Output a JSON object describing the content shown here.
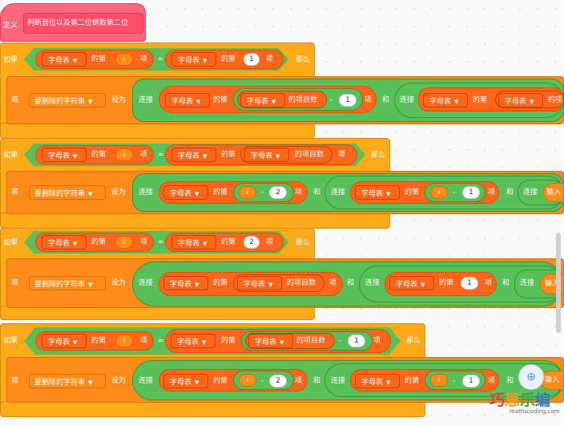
{
  "define": {
    "keyword": "定义",
    "name": "判断首位以及第二位倒数第二位"
  },
  "common": {
    "if": "如果",
    "then": "那么",
    "set": "将",
    "to": "设为",
    "join": "连接",
    "item_of": "的第",
    "item": "项",
    "and": "和",
    "length": "的项目数",
    "minus": "-",
    "equals": "="
  },
  "list_name": "字母表",
  "var_name": "要删除的字符串",
  "loop_var": "i",
  "input_truncated": "输入",
  "numbers": {
    "one": "1",
    "two": "2"
  },
  "colors": {
    "control": "#ffab19",
    "variable": "#ff8c1a",
    "list": "#ff661a",
    "operator": "#59c059",
    "define": "#ff6680"
  },
  "zoom_icon": "zoom-in-icon",
  "watermark": {
    "logo_chars": [
      "巧",
      "思",
      "乐",
      "编"
    ],
    "site": "mathscoding.com"
  }
}
